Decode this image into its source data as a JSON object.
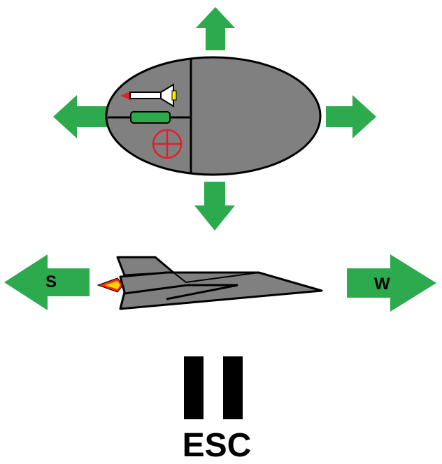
{
  "colors": {
    "arrow": "#2eaa4e",
    "mouse_body": "#808080",
    "outline": "#000000",
    "crosshair": "#e0202a",
    "missile_tip": "#e0202a",
    "missile_tail": "#ffee00",
    "battery": "#2eaa4e",
    "jet": "#808080",
    "flame_outer": "#ff2a00",
    "flame_inner": "#ffd200"
  },
  "icons": {
    "up": "arrow-up-icon",
    "down": "arrow-down-icon",
    "left": "arrow-left-icon",
    "right": "arrow-right-icon",
    "mouse": "mouse-icon",
    "missile": "missile-icon",
    "battery": "battery-icon",
    "crosshair": "crosshair-icon",
    "jet": "jet-icon",
    "pause": "pause-icon"
  },
  "controls": {
    "brake_key": "S",
    "thrust_key": "W",
    "pause_key": "ESC"
  }
}
